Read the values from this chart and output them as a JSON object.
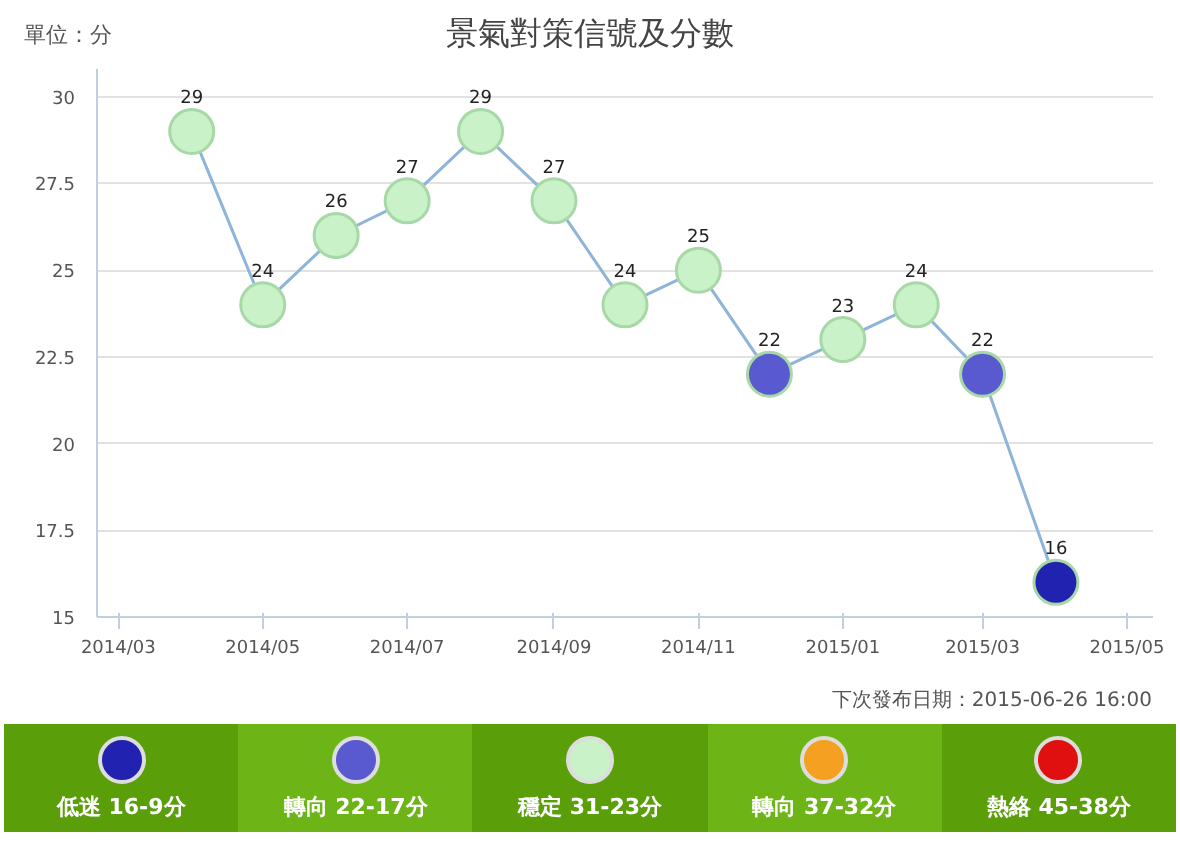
{
  "chart_data": {
    "type": "line",
    "title": "景氣對策信號及分數",
    "ylabel": "單位：分",
    "x": [
      "2014-04",
      "2014-05",
      "2014-06",
      "2014-07",
      "2014-08",
      "2014-09",
      "2014-10",
      "2014-11",
      "2014-12",
      "2015-01",
      "2015-02",
      "2015-03",
      "2015-04"
    ],
    "series": [
      {
        "color": "#8fb4d9",
        "values": [
          29,
          24,
          26,
          27,
          29,
          27,
          24,
          25,
          22,
          23,
          24,
          22,
          16
        ],
        "colors": [
          "#c9f2c9",
          "#c9f2c9",
          "#c9f2c9",
          "#c9f2c9",
          "#c9f2c9",
          "#c9f2c9",
          "#c9f2c9",
          "#c9f2c9",
          "#5a5ad0",
          "#c9f2c9",
          "#c9f2c9",
          "#5a5ad0",
          "#2222b0"
        ]
      }
    ],
    "data_labels": true,
    "marker": "circle",
    "line_style": "solid",
    "grid": "y",
    "xlim": [
      "2014-02-20",
      "2015-05-12"
    ],
    "xticks": [
      {
        "value": "2014-03",
        "label": "2014/03"
      },
      {
        "value": "2014-05",
        "label": "2014/05"
      },
      {
        "value": "2014-07",
        "label": "2014/07"
      },
      {
        "value": "2014-09",
        "label": "2014/09"
      },
      {
        "value": "2014-11",
        "label": "2014/11"
      },
      {
        "value": "2015-01",
        "label": "2015/01"
      },
      {
        "value": "2015-03",
        "label": "2015/03"
      },
      {
        "value": "2015-05",
        "label": "2015/05"
      }
    ],
    "ylim": [
      15,
      30.8
    ],
    "yticks": [
      15,
      17.5,
      20,
      22.5,
      25,
      27.5,
      30
    ],
    "annotations": [
      "下次發布日期：2015-06-26 16:00",
      "低迷 16-9分",
      "轉向 22-17分",
      "穩定 31-23分",
      "轉向 37-32分",
      "熱絡 45-38分"
    ]
  }
}
